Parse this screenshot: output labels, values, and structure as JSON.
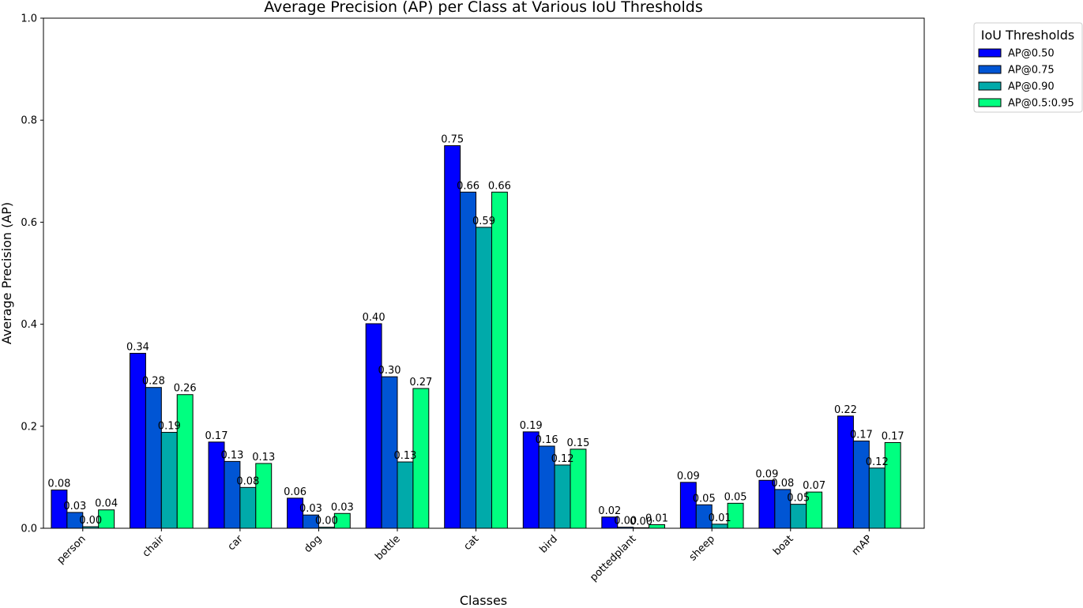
{
  "chart_data": {
    "type": "bar",
    "title": "Average Precision (AP) per Class at Various IoU Thresholds",
    "xlabel": "Classes",
    "ylabel": "Average Precision (AP)",
    "ylim": [
      0,
      1.0
    ],
    "yticks": [
      "0.0",
      "0.2",
      "0.4",
      "0.6",
      "0.8",
      "1.0"
    ],
    "grid": false,
    "legend_title": "IoU Thresholds",
    "legend_position": "outside-top-right",
    "categories": [
      "person",
      "chair",
      "car",
      "dog",
      "bottle",
      "cat",
      "bird",
      "pottedplant",
      "sheep",
      "boat",
      "mAP"
    ],
    "series": [
      {
        "name": "AP@0.50",
        "color": "#0000ff",
        "values": [
          0.075,
          0.343,
          0.169,
          0.059,
          0.401,
          0.75,
          0.189,
          0.022,
          0.09,
          0.094,
          0.22
        ],
        "labels": [
          "0.08",
          "0.34",
          "0.17",
          "0.06",
          "0.40",
          "0.75",
          "0.19",
          "0.02",
          "0.09",
          "0.09",
          "0.22"
        ]
      },
      {
        "name": "AP@0.75",
        "color": "#0055d4",
        "values": [
          0.031,
          0.276,
          0.131,
          0.026,
          0.297,
          0.659,
          0.161,
          0.002,
          0.046,
          0.076,
          0.171
        ],
        "labels": [
          "0.03",
          "0.28",
          "0.13",
          "0.03",
          "0.30",
          "0.66",
          "0.16",
          "0.00",
          "0.05",
          "0.08",
          "0.17"
        ]
      },
      {
        "name": "AP@0.90",
        "color": "#00aaaa",
        "values": [
          0.003,
          0.188,
          0.08,
          0.002,
          0.13,
          0.59,
          0.124,
          0.001,
          0.008,
          0.047,
          0.118
        ],
        "labels": [
          "0.00",
          "0.19",
          "0.08",
          "0.00",
          "0.13",
          "0.59",
          "0.12",
          "0.00",
          "0.01",
          "0.05",
          "0.12"
        ]
      },
      {
        "name": "AP@0.5:0.95",
        "color": "#00ff80",
        "values": [
          0.036,
          0.262,
          0.127,
          0.029,
          0.274,
          0.659,
          0.155,
          0.007,
          0.049,
          0.071,
          0.168
        ],
        "labels": [
          "0.04",
          "0.26",
          "0.13",
          "0.03",
          "0.27",
          "0.66",
          "0.15",
          "0.01",
          "0.05",
          "0.07",
          "0.17"
        ]
      }
    ]
  }
}
